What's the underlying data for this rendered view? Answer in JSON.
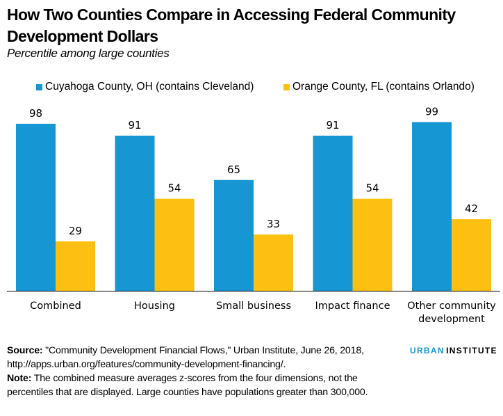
{
  "colors": {
    "cuyahoga": "#1696d2",
    "orange": "#fdbf11",
    "axis": "#000000"
  },
  "chart_data": {
    "type": "bar",
    "title": "How Two Counties Compare in Accessing Federal Community Development Dollars",
    "subtitle": "Percentile among large counties",
    "categories": [
      "Combined",
      "Housing",
      "Small business",
      "Impact finance",
      "Other community development"
    ],
    "category_lines": [
      [
        "Combined"
      ],
      [
        "Housing"
      ],
      [
        "Small business"
      ],
      [
        "Impact finance"
      ],
      [
        "Other community",
        "development"
      ]
    ],
    "series": [
      {
        "name": "Cuyahoga County, OH (contains Cleveland)",
        "values": [
          98,
          91,
          65,
          91,
          99
        ]
      },
      {
        "name": "Orange County, FL (contains Orlando)",
        "values": [
          29,
          54,
          33,
          54,
          42
        ]
      }
    ],
    "ylim": [
      0,
      100
    ],
    "grid": false,
    "legend": "top",
    "data_labels": true
  },
  "footer": {
    "source_label": "Source:",
    "source_text": " \"Community Development Financial Flows,\" Urban Institute, June 26, 2018, http://apps.urban.org/features/community-development-financing/.",
    "note_label": "Note:",
    "note_text": " The combined measure averages z-scores from the four dimensions, not the percentiles that are displayed. Large counties have populations greater than 300,000."
  },
  "logo": {
    "part1": "URBAN",
    "part2": "INSTITUTE"
  }
}
